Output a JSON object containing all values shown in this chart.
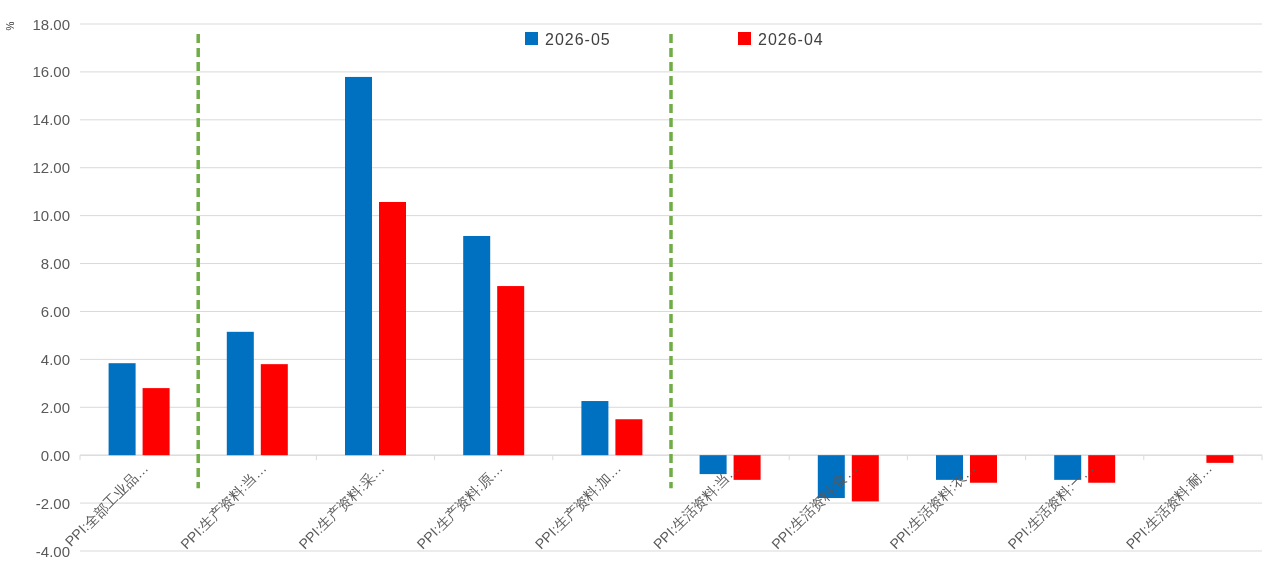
{
  "chart_data": {
    "type": "bar",
    "ylabel": "%",
    "categories": [
      "PPI:全部工业品…",
      "PPI:生产资料:当…",
      "PPI:生产资料:采…",
      "PPI:生产资料:原…",
      "PPI:生产资料:加…",
      "PPI:生活资料:当…",
      "PPI:生活资料:食…",
      "PPI:生活资料:衣…",
      "PPI:生活资料:一…",
      "PPI:生活资料:耐…"
    ],
    "series": [
      {
        "name": "2026-05",
        "color": "#0070c0",
        "values": [
          3.84,
          5.15,
          15.79,
          9.15,
          2.26,
          -0.79,
          -1.79,
          -1.03,
          -1.03,
          null
        ]
      },
      {
        "name": "2026-04",
        "color": "#ff0000",
        "values": [
          2.8,
          3.8,
          10.57,
          7.06,
          1.5,
          -1.03,
          -1.93,
          -1.15,
          -1.15,
          -0.32
        ]
      }
    ],
    "ylim": [
      -4,
      18
    ],
    "yticks": [
      {
        "value": -4,
        "label": "-4.00"
      },
      {
        "value": -2,
        "label": "-2.00"
      },
      {
        "value": 0,
        "label": "0.00"
      },
      {
        "value": 2,
        "label": "2.00"
      },
      {
        "value": 4,
        "label": "4.00"
      },
      {
        "value": 6,
        "label": "6.00"
      },
      {
        "value": 8,
        "label": "8.00"
      },
      {
        "value": 10,
        "label": "10.00"
      },
      {
        "value": 12,
        "label": "12.00"
      },
      {
        "value": 14,
        "label": "14.00"
      },
      {
        "value": 16,
        "label": "16.00"
      },
      {
        "value": 18,
        "label": "18.00"
      }
    ],
    "grid": "y",
    "legend": "top"
  }
}
